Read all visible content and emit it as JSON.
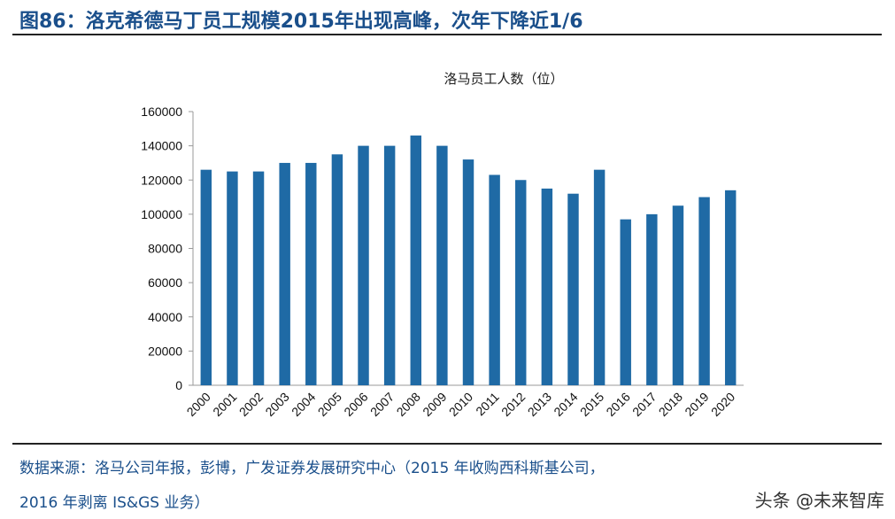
{
  "title": "图86：洛克希德马丁员工规模2015年出现高峰，次年下降近1/6",
  "source_line1": "数据来源：洛马公司年报，彭博，广发证券发展研究中心（2015 年收购西科斯基公司，",
  "source_line2": "2016 年剥离 IS&GS 业务）",
  "watermark": "头条 @未来智库",
  "chart_data": {
    "type": "bar",
    "title": "洛马员工人数（位）",
    "categories": [
      "2000",
      "2001",
      "2002",
      "2003",
      "2004",
      "2005",
      "2006",
      "2007",
      "2008",
      "2009",
      "2010",
      "2011",
      "2012",
      "2013",
      "2014",
      "2015",
      "2016",
      "2017",
      "2018",
      "2019",
      "2020"
    ],
    "values": [
      126000,
      125000,
      125000,
      130000,
      130000,
      135000,
      140000,
      140000,
      146000,
      140000,
      132000,
      123000,
      120000,
      115000,
      112000,
      126000,
      97000,
      100000,
      105000,
      110000,
      114000
    ],
    "ylim": [
      0,
      160000
    ],
    "yticks": [
      "0",
      "20000",
      "40000",
      "60000",
      "80000",
      "100000",
      "120000",
      "140000",
      "160000"
    ],
    "grid": false,
    "bar_color": "#1f6aa5"
  }
}
